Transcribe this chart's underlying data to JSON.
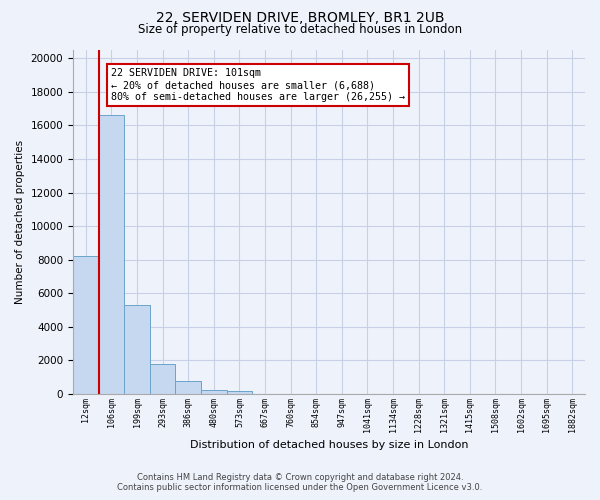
{
  "title_line1": "22, SERVIDEN DRIVE, BROMLEY, BR1 2UB",
  "title_line2": "Size of property relative to detached houses in London",
  "xlabel": "Distribution of detached houses by size in London",
  "ylabel": "Number of detached properties",
  "bar_values": [
    8200,
    16600,
    5300,
    1800,
    750,
    250,
    200,
    0,
    0,
    0,
    0,
    0,
    0,
    0,
    0,
    0,
    0,
    0,
    0,
    0
  ],
  "bar_labels": [
    "12sqm",
    "106sqm",
    "199sqm",
    "293sqm",
    "386sqm",
    "480sqm",
    "573sqm",
    "667sqm",
    "760sqm",
    "854sqm",
    "947sqm",
    "1041sqm",
    "1134sqm",
    "1228sqm",
    "1321sqm",
    "1415sqm",
    "1508sqm",
    "1602sqm",
    "1695sqm",
    "1882sqm"
  ],
  "bar_color": "#c5d8f0",
  "bar_edge_color": "#6aa3cc",
  "vline_color": "#cc0000",
  "annotation_text_line1": "22 SERVIDEN DRIVE: 101sqm",
  "annotation_text_line2": "← 20% of detached houses are smaller (6,688)",
  "annotation_text_line3": "80% of semi-detached houses are larger (26,255) →",
  "ylim": [
    0,
    20500
  ],
  "yticks": [
    0,
    2000,
    4000,
    6000,
    8000,
    10000,
    12000,
    14000,
    16000,
    18000,
    20000
  ],
  "footer_line1": "Contains HM Land Registry data © Crown copyright and database right 2024.",
  "footer_line2": "Contains public sector information licensed under the Open Government Licence v3.0.",
  "bg_color": "#eef2fb",
  "plot_bg_color": "#eef2fb",
  "grid_color": "#c8d0e8"
}
